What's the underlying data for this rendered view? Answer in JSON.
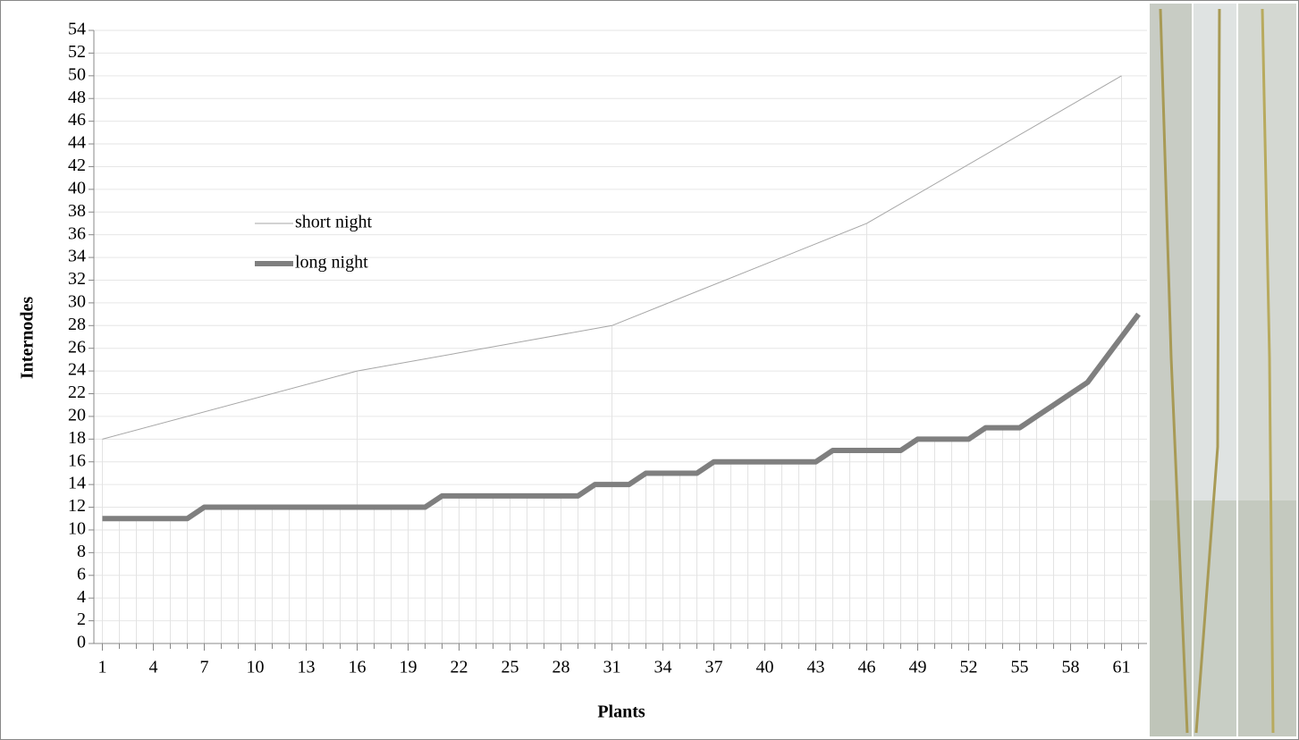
{
  "chart_data": {
    "type": "line",
    "x_label": "Plants",
    "y_label": "Internodes",
    "xlim": [
      0.5,
      62.5
    ],
    "xticks": [
      1,
      4,
      7,
      10,
      13,
      16,
      19,
      22,
      25,
      28,
      31,
      34,
      37,
      40,
      43,
      46,
      49,
      52,
      55,
      58,
      61
    ],
    "ylim": [
      0,
      54
    ],
    "yticks": [
      0,
      2,
      4,
      6,
      8,
      10,
      12,
      14,
      16,
      18,
      20,
      22,
      24,
      26,
      28,
      30,
      32,
      34,
      36,
      38,
      40,
      42,
      44,
      46,
      48,
      50,
      52,
      54
    ],
    "grid": true,
    "series": [
      {
        "name": "short night",
        "color": "#a6a6a6",
        "x": [
          1,
          16,
          31,
          46,
          61
        ],
        "values": [
          18,
          24,
          28,
          37,
          50
        ]
      },
      {
        "name": "long night",
        "color": "#7f7f7f",
        "x": [
          1,
          2,
          3,
          4,
          5,
          6,
          7,
          8,
          9,
          10,
          11,
          12,
          13,
          14,
          15,
          16,
          17,
          18,
          19,
          20,
          21,
          22,
          23,
          24,
          25,
          26,
          27,
          28,
          29,
          30,
          31,
          32,
          33,
          34,
          35,
          36,
          37,
          38,
          39,
          40,
          41,
          42,
          43,
          44,
          45,
          46,
          47,
          48,
          49,
          50,
          51,
          52,
          53,
          54,
          55,
          56,
          57,
          58,
          59,
          60,
          61,
          62
        ],
        "values": [
          11,
          11,
          11,
          11,
          11,
          11,
          12,
          12,
          12,
          12,
          12,
          12,
          12,
          12,
          12,
          12,
          12,
          12,
          12,
          12,
          13,
          13,
          13,
          13,
          13,
          13,
          13,
          13,
          13,
          14,
          14,
          14,
          15,
          15,
          15,
          15,
          16,
          16,
          16,
          16,
          16,
          16,
          16,
          17,
          17,
          17,
          17,
          17,
          18,
          18,
          18,
          18,
          19,
          19,
          19,
          20,
          21,
          22,
          23,
          25,
          27,
          29
        ]
      }
    ]
  }
}
